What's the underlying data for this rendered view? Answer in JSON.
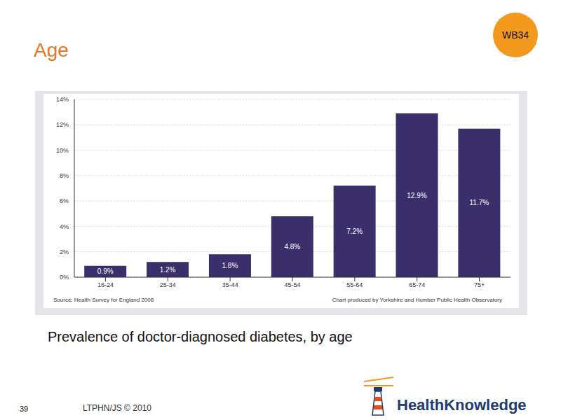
{
  "slide": {
    "heading": "Age",
    "badge": "WB34",
    "caption": "Prevalence of doctor-diagnosed diabetes, by age",
    "page_number": "39",
    "footer": "LTPHN/JS © 2010",
    "logo": "HealthKnowledge"
  },
  "chart_data": {
    "type": "bar",
    "categories": [
      "16-24",
      "25-34",
      "35-44",
      "45-54",
      "55-64",
      "65-74",
      "75+"
    ],
    "values": [
      0.9,
      1.2,
      1.8,
      4.8,
      7.2,
      12.9,
      11.7
    ],
    "value_labels": [
      "0.9%",
      "1.2%",
      "1.8%",
      "4.8%",
      "7.2%",
      "12.9%",
      "11.7%"
    ],
    "color": "#3b2f6b",
    "ylim": [
      0,
      14
    ],
    "yticks": [
      {
        "value": 0,
        "label": "0%"
      },
      {
        "value": 2,
        "label": "2%"
      },
      {
        "value": 4,
        "label": "4%"
      },
      {
        "value": 6,
        "label": "6%"
      },
      {
        "value": 8,
        "label": "8%"
      },
      {
        "value": 10,
        "label": "10%"
      },
      {
        "value": 12,
        "label": "12%"
      },
      {
        "value": 14,
        "label": "14%"
      }
    ],
    "grid": true,
    "data_labels": true,
    "annotations": [
      "Source: Health Survey for England 2006",
      "Chart produced by Yorkshire and Humber Public Health Observatory"
    ]
  }
}
